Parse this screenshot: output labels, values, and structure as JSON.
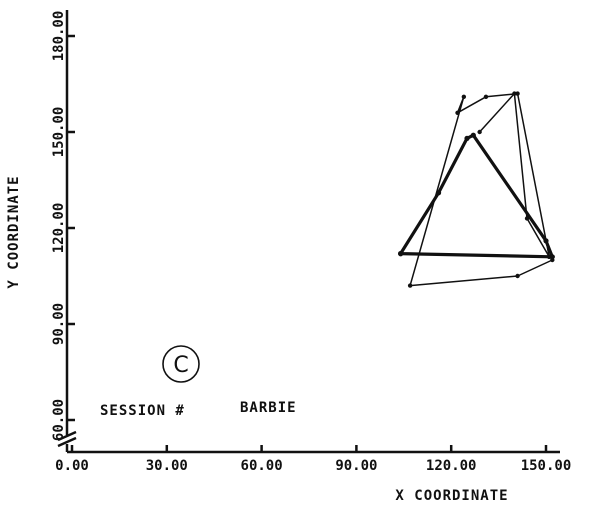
{
  "chart_data": {
    "type": "line",
    "title": "",
    "xlabel": "X COORDINATE",
    "ylabel": "Y COORDINATE",
    "xlim": [
      0,
      150
    ],
    "ylim": [
      45,
      180
    ],
    "x_ticks": [
      0,
      30,
      60,
      90,
      120,
      150
    ],
    "x_tick_labels": [
      "0.00",
      "30.00",
      "60.00",
      "90.00",
      "120.00",
      "150.00"
    ],
    "y_ticks": [
      60,
      90,
      120,
      150,
      180
    ],
    "y_tick_labels": [
      "60.00",
      "90.00",
      "120.00",
      "150.00",
      "180.00"
    ],
    "y_axis_break": true,
    "grid": false,
    "series": [
      {
        "name": "",
        "style": "thin",
        "x": [
          151,
          141,
          131,
          122,
          124,
          107,
          141,
          152
        ],
        "y": [
          111,
          162,
          161,
          156,
          161,
          102,
          105,
          110
        ]
      },
      {
        "name": "",
        "style": "thin",
        "x": [
          151,
          144,
          140,
          129
        ],
        "y": [
          111,
          123,
          162,
          150
        ]
      },
      {
        "name": "",
        "style": "thick",
        "x": [
          104,
          116,
          125,
          127,
          150,
          152,
          104
        ],
        "y": [
          112,
          131,
          148,
          149,
          116,
          111,
          112
        ]
      }
    ],
    "annotations": {
      "panel_label": "C",
      "session_label": "SESSION #",
      "session_name": "BARBIE"
    }
  }
}
